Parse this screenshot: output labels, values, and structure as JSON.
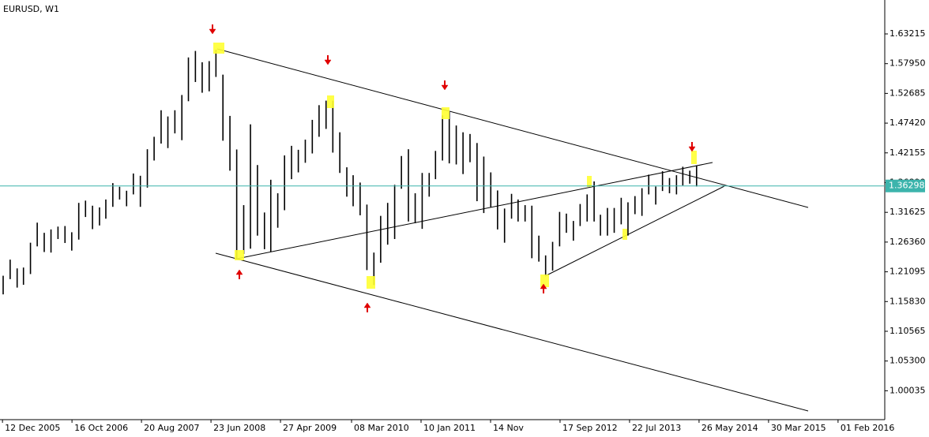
{
  "chart_data": {
    "type": "ohlc",
    "title": "EURUSD, W1",
    "color": "#000000",
    "x": [
      "2005-12-15",
      "2006-01-15",
      "2006-02-15",
      "2006-03-15",
      "2006-04-15",
      "2006-05-15",
      "2006-06-15",
      "2006-07-15",
      "2006-08-15",
      "2006-09-15",
      "2006-10-15",
      "2006-11-15",
      "2006-12-15",
      "2007-01-15",
      "2007-02-15",
      "2007-03-15",
      "2007-04-15",
      "2007-05-15",
      "2007-06-15",
      "2007-07-15",
      "2007-08-15",
      "2007-09-15",
      "2007-10-15",
      "2007-11-15",
      "2007-12-15",
      "2008-01-15",
      "2008-02-15",
      "2008-03-15",
      "2008-04-15",
      "2008-05-15",
      "2008-06-15",
      "2008-07-15",
      "2008-08-15",
      "2008-09-15",
      "2008-10-15",
      "2008-11-15",
      "2008-12-15",
      "2009-01-15",
      "2009-02-15",
      "2009-03-15",
      "2009-04-15",
      "2009-05-15",
      "2009-06-15",
      "2009-07-15",
      "2009-08-15",
      "2009-09-15",
      "2009-10-15",
      "2009-11-15",
      "2009-12-15",
      "2010-01-15",
      "2010-02-15",
      "2010-03-15",
      "2010-04-15",
      "2010-05-15",
      "2010-06-15",
      "2010-07-15",
      "2010-08-15",
      "2010-09-15",
      "2010-10-15",
      "2010-11-15",
      "2010-12-15",
      "2011-01-15",
      "2011-02-15",
      "2011-03-15",
      "2011-04-15",
      "2011-05-15",
      "2011-06-15",
      "2011-07-15",
      "2011-08-15",
      "2011-09-15",
      "2011-10-15",
      "2011-11-15",
      "2011-12-15",
      "2012-01-15",
      "2012-02-15",
      "2012-03-15",
      "2012-04-15",
      "2012-05-15",
      "2012-06-15",
      "2012-07-15",
      "2012-08-15",
      "2012-09-15",
      "2012-10-15",
      "2012-11-15",
      "2012-12-15",
      "2013-01-15",
      "2013-02-15",
      "2013-03-15",
      "2013-04-15",
      "2013-05-15",
      "2013-06-15",
      "2013-07-15",
      "2013-08-15",
      "2013-09-15",
      "2013-10-15",
      "2013-11-15",
      "2013-12-15",
      "2014-01-15",
      "2014-02-15",
      "2014-03-15",
      "2014-04-15",
      "2014-05-15"
    ],
    "high": [
      1.204,
      1.2325,
      1.217,
      1.2185,
      1.2625,
      1.298,
      1.28,
      1.286,
      1.291,
      1.292,
      1.281,
      1.333,
      1.337,
      1.328,
      1.325,
      1.339,
      1.368,
      1.3615,
      1.3545,
      1.385,
      1.381,
      1.428,
      1.45,
      1.497,
      1.486,
      1.497,
      1.524,
      1.5905,
      1.602,
      1.582,
      1.584,
      1.604,
      1.56,
      1.487,
      1.4275,
      1.329,
      1.472,
      1.4,
      1.316,
      1.374,
      1.35,
      1.417,
      1.434,
      1.427,
      1.445,
      1.48,
      1.506,
      1.514,
      1.514,
      1.458,
      1.396,
      1.382,
      1.369,
      1.33,
      1.245,
      1.31,
      1.333,
      1.365,
      1.416,
      1.428,
      1.35,
      1.386,
      1.386,
      1.425,
      1.488,
      1.494,
      1.47,
      1.458,
      1.455,
      1.439,
      1.415,
      1.387,
      1.355,
      1.323,
      1.349,
      1.339,
      1.329,
      1.328,
      1.275,
      1.24,
      1.264,
      1.317,
      1.314,
      1.301,
      1.331,
      1.348,
      1.371,
      1.312,
      1.324,
      1.324,
      1.342,
      1.334,
      1.345,
      1.359,
      1.383,
      1.362,
      1.389,
      1.377,
      1.382,
      1.397,
      1.39,
      1.3995
    ],
    "low": [
      1.171,
      1.198,
      1.183,
      1.188,
      1.207,
      1.256,
      1.246,
      1.245,
      1.269,
      1.262,
      1.2485,
      1.268,
      1.308,
      1.2865,
      1.293,
      1.305,
      1.326,
      1.339,
      1.327,
      1.348,
      1.326,
      1.36,
      1.408,
      1.438,
      1.43,
      1.456,
      1.444,
      1.513,
      1.547,
      1.528,
      1.5305,
      1.556,
      1.443,
      1.39,
      1.233,
      1.2425,
      1.252,
      1.275,
      1.251,
      1.246,
      1.289,
      1.32,
      1.375,
      1.387,
      1.404,
      1.4205,
      1.45,
      1.464,
      1.422,
      1.386,
      1.344,
      1.327,
      1.311,
      1.214,
      1.1875,
      1.227,
      1.259,
      1.269,
      1.358,
      1.3,
      1.297,
      1.287,
      1.344,
      1.375,
      1.408,
      1.403,
      1.401,
      1.384,
      1.405,
      1.336,
      1.315,
      1.325,
      1.286,
      1.2625,
      1.305,
      1.3,
      1.3,
      1.235,
      1.229,
      1.204,
      1.213,
      1.256,
      1.28,
      1.266,
      1.292,
      1.3,
      1.3,
      1.275,
      1.275,
      1.28,
      1.295,
      1.275,
      1.313,
      1.31,
      1.348,
      1.33,
      1.354,
      1.35,
      1.348,
      1.364,
      1.367,
      1.362
    ],
    "xlim": [
      "2005-12-01",
      "2016-08-26"
    ],
    "xticks": [
      {
        "value": "2005-12-12",
        "label": "12 Dec 2005"
      },
      {
        "value": "2006-10-16",
        "label": "16 Oct 2006"
      },
      {
        "value": "2007-08-20",
        "label": "20 Aug 2007"
      },
      {
        "value": "2008-06-23",
        "label": "23 Jun 2008"
      },
      {
        "value": "2009-04-27",
        "label": "27 Apr 2009"
      },
      {
        "value": "2010-03-08",
        "label": "08 Mar 2010"
      },
      {
        "value": "2011-01-10",
        "label": "10 Jan 2011"
      },
      {
        "value": "2011-11-14",
        "label": "14 Nov"
      },
      {
        "value": "2012-09-17",
        "label": "17 Sep 2012"
      },
      {
        "value": "2013-07-22",
        "label": "22 Jul 2013"
      },
      {
        "value": "2014-05-26",
        "label": "26 May 2014"
      },
      {
        "value": "2015-03-30",
        "label": "30 Mar 2015"
      },
      {
        "value": "2016-02-01",
        "label": "01 Feb 2016"
      }
    ],
    "ylim": [
      0.9492,
      1.6922
    ],
    "yticks": [
      1.63215,
      {
        "value": 1.5795,
        "label": "1.57950"
      },
      1.52685,
      {
        "value": 1.4742,
        "label": "1.47420"
      },
      1.42155,
      {
        "value": 1.3689,
        "label": "1.36890"
      },
      1.31625,
      {
        "value": 1.2636,
        "label": "1.26360"
      },
      1.21095,
      {
        "value": 1.1583,
        "label": "1.15830"
      },
      1.10565,
      {
        "value": 1.053,
        "label": "1.05300"
      },
      1.00035
    ],
    "current_price": 1.36298,
    "current_price_color": "#3cb4ac"
  }
}
